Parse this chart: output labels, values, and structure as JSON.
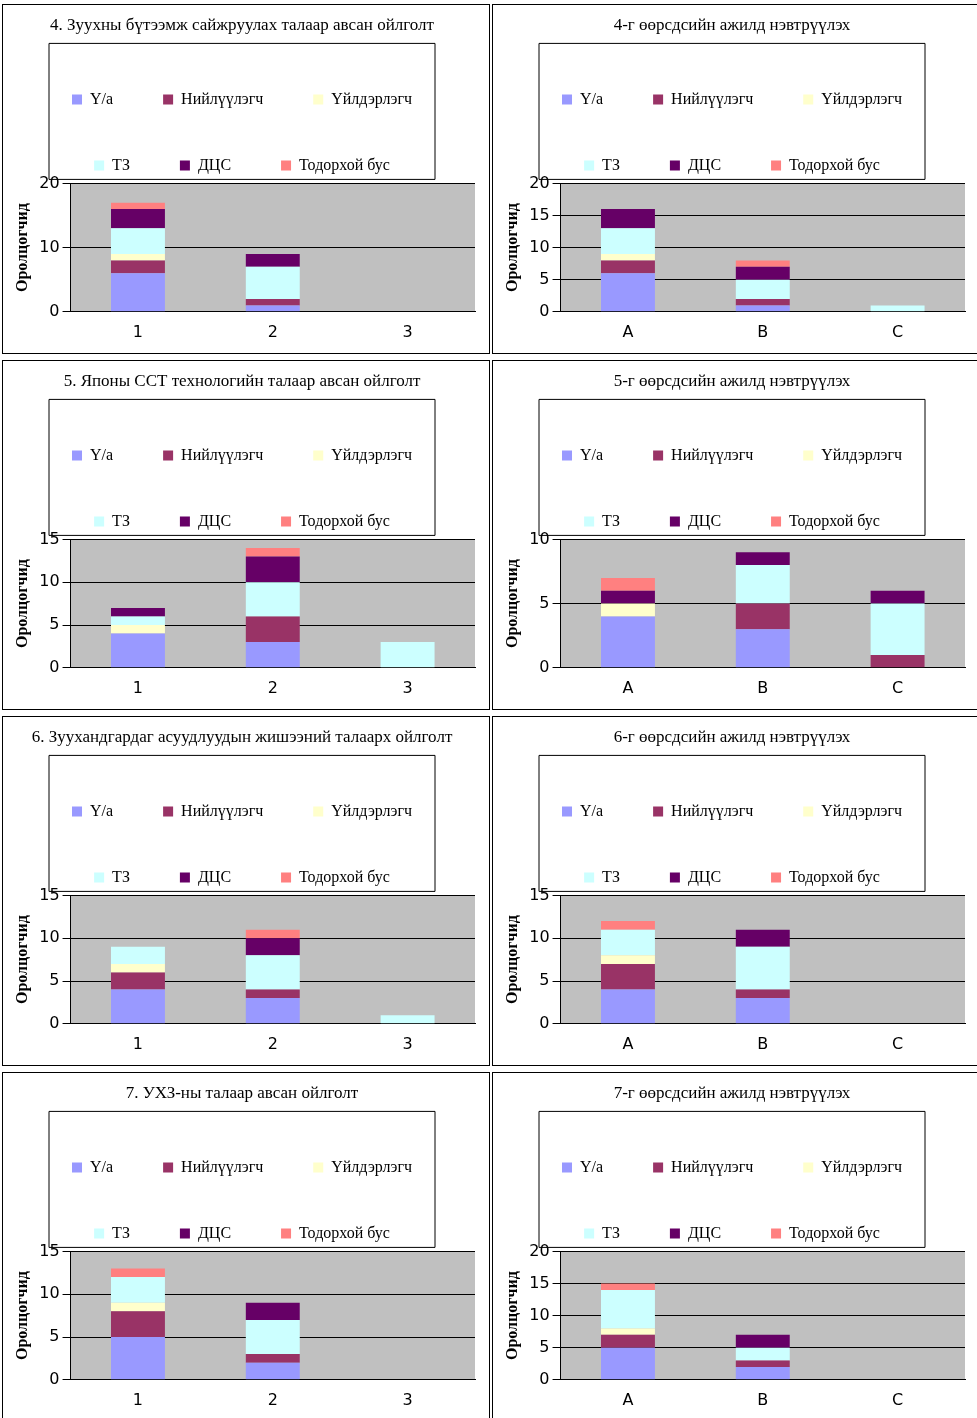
{
  "chart_data": [
    {
      "type": "bar",
      "stacked": true,
      "title": "4. Зуухны бүтээмж сайжруулах талаар авсан ойлголт",
      "ylabel": "Оролцогчид",
      "categories": [
        "1",
        "2",
        "3"
      ],
      "ylim": [
        0,
        20
      ],
      "yticks": [
        0,
        10,
        20
      ],
      "grid": "y",
      "legend": "top",
      "series": [
        {
          "name": "Y/a",
          "color": "#9999ff",
          "values": [
            6,
            1,
            0
          ]
        },
        {
          "name": "Нийлүүлэгч",
          "color": "#993366",
          "values": [
            2,
            1,
            0
          ]
        },
        {
          "name": "Үйлдэрлэгч",
          "color": "#ffffcc",
          "values": [
            1,
            0,
            0
          ]
        },
        {
          "name": "ТЗ",
          "color": "#ccffff",
          "values": [
            4,
            5,
            0
          ]
        },
        {
          "name": "ДЦС",
          "color": "#660066",
          "values": [
            3,
            2,
            0
          ]
        },
        {
          "name": "Тодорхой бус",
          "color": "#ff8080",
          "values": [
            1,
            0,
            0
          ]
        }
      ]
    },
    {
      "type": "bar",
      "stacked": true,
      "title": "4-г өөрсдсийн ажилд нэвтрүүлэх",
      "ylabel": "Оролцогчид",
      "categories": [
        "A",
        "B",
        "C"
      ],
      "ylim": [
        0,
        20
      ],
      "yticks": [
        0,
        5,
        10,
        15,
        20
      ],
      "grid": "y",
      "legend": "top",
      "series": [
        {
          "name": "Y/a",
          "color": "#9999ff",
          "values": [
            6,
            1,
            0
          ]
        },
        {
          "name": "Нийлүүлэгч",
          "color": "#993366",
          "values": [
            2,
            1,
            0
          ]
        },
        {
          "name": "Үйлдэрлэгч",
          "color": "#ffffcc",
          "values": [
            1,
            0,
            0
          ]
        },
        {
          "name": "ТЗ",
          "color": "#ccffff",
          "values": [
            4,
            3,
            1
          ]
        },
        {
          "name": "ДЦС",
          "color": "#660066",
          "values": [
            3,
            2,
            0
          ]
        },
        {
          "name": "Тодорхой бус",
          "color": "#ff8080",
          "values": [
            0,
            1,
            0
          ]
        }
      ]
    },
    {
      "type": "bar",
      "stacked": true,
      "title": "5. Японы ССТ технологийн талаар авсан ойлголт",
      "ylabel": "Оролцогчид",
      "categories": [
        "1",
        "2",
        "3"
      ],
      "ylim": [
        0,
        15
      ],
      "yticks": [
        0,
        5,
        10,
        15
      ],
      "grid": "y",
      "legend": "top",
      "series": [
        {
          "name": "Y/a",
          "color": "#9999ff",
          "values": [
            4,
            3,
            0
          ]
        },
        {
          "name": "Нийлүүлэгч",
          "color": "#993366",
          "values": [
            0,
            3,
            0
          ]
        },
        {
          "name": "Үйлдэрлэгч",
          "color": "#ffffcc",
          "values": [
            1,
            0,
            0
          ]
        },
        {
          "name": "ТЗ",
          "color": "#ccffff",
          "values": [
            1,
            4,
            3
          ]
        },
        {
          "name": "ДЦС",
          "color": "#660066",
          "values": [
            1,
            3,
            0
          ]
        },
        {
          "name": "Тодорхой бус",
          "color": "#ff8080",
          "values": [
            0,
            1,
            0
          ]
        }
      ]
    },
    {
      "type": "bar",
      "stacked": true,
      "title": "5-г өөрсдсийн ажилд нэвтрүүлэх",
      "ylabel": "Оролцогчид",
      "categories": [
        "A",
        "B",
        "C"
      ],
      "ylim": [
        0,
        10
      ],
      "yticks": [
        0,
        5,
        10
      ],
      "grid": "y",
      "legend": "top",
      "series": [
        {
          "name": "Y/a",
          "color": "#9999ff",
          "values": [
            4,
            3,
            0
          ]
        },
        {
          "name": "Нийлүүлэгч",
          "color": "#993366",
          "values": [
            0,
            2,
            1
          ]
        },
        {
          "name": "Үйлдэрлэгч",
          "color": "#ffffcc",
          "values": [
            1,
            0,
            0
          ]
        },
        {
          "name": "ТЗ",
          "color": "#ccffff",
          "values": [
            0,
            3,
            4
          ]
        },
        {
          "name": "ДЦС",
          "color": "#660066",
          "values": [
            1,
            1,
            1
          ]
        },
        {
          "name": "Тодорхой бус",
          "color": "#ff8080",
          "values": [
            1,
            0,
            0
          ]
        }
      ]
    },
    {
      "type": "bar",
      "stacked": true,
      "title": "6. Зуухандгардаг асуудлуудын жишээний талаарх ойлголт",
      "ylabel": "Оролцогчид",
      "categories": [
        "1",
        "2",
        "3"
      ],
      "ylim": [
        0,
        15
      ],
      "yticks": [
        0,
        5,
        10,
        15
      ],
      "grid": "y",
      "legend": "top",
      "series": [
        {
          "name": "Y/a",
          "color": "#9999ff",
          "values": [
            4,
            3,
            0
          ]
        },
        {
          "name": "Нийлүүлэгч",
          "color": "#993366",
          "values": [
            2,
            1,
            0
          ]
        },
        {
          "name": "Үйлдэрлэгч",
          "color": "#ffffcc",
          "values": [
            1,
            0,
            0
          ]
        },
        {
          "name": "ТЗ",
          "color": "#ccffff",
          "values": [
            2,
            4,
            1
          ]
        },
        {
          "name": "ДЦС",
          "color": "#660066",
          "values": [
            0,
            2,
            0
          ]
        },
        {
          "name": "Тодорхой бус",
          "color": "#ff8080",
          "values": [
            0,
            1,
            0
          ]
        }
      ]
    },
    {
      "type": "bar",
      "stacked": true,
      "title": "6-г өөрсдсийн ажилд нэвтрүүлэх",
      "ylabel": "Оролцогчид",
      "categories": [
        "A",
        "B",
        "C"
      ],
      "ylim": [
        0,
        15
      ],
      "yticks": [
        0,
        5,
        10,
        15
      ],
      "grid": "y",
      "legend": "top",
      "series": [
        {
          "name": "Y/a",
          "color": "#9999ff",
          "values": [
            4,
            3,
            0
          ]
        },
        {
          "name": "Нийлүүлэгч",
          "color": "#993366",
          "values": [
            3,
            1,
            0
          ]
        },
        {
          "name": "Үйлдэрлэгч",
          "color": "#ffffcc",
          "values": [
            1,
            0,
            0
          ]
        },
        {
          "name": "ТЗ",
          "color": "#ccffff",
          "values": [
            3,
            5,
            0
          ]
        },
        {
          "name": "ДЦС",
          "color": "#660066",
          "values": [
            0,
            2,
            0
          ]
        },
        {
          "name": "Тодорхой бус",
          "color": "#ff8080",
          "values": [
            1,
            0,
            0
          ]
        }
      ]
    },
    {
      "type": "bar",
      "stacked": true,
      "title": "7. УХЗ-ны талаар авсан ойлголт",
      "ylabel": "Оролцогчид",
      "categories": [
        "1",
        "2",
        "3"
      ],
      "ylim": [
        0,
        15
      ],
      "yticks": [
        0,
        5,
        10,
        15
      ],
      "grid": "y",
      "legend": "top",
      "series": [
        {
          "name": "Y/a",
          "color": "#9999ff",
          "values": [
            5,
            2,
            0
          ]
        },
        {
          "name": "Нийлүүлэгч",
          "color": "#993366",
          "values": [
            3,
            1,
            0
          ]
        },
        {
          "name": "Үйлдэрлэгч",
          "color": "#ffffcc",
          "values": [
            1,
            0,
            0
          ]
        },
        {
          "name": "ТЗ",
          "color": "#ccffff",
          "values": [
            3,
            4,
            0
          ]
        },
        {
          "name": "ДЦС",
          "color": "#660066",
          "values": [
            0,
            2,
            0
          ]
        },
        {
          "name": "Тодорхой бус",
          "color": "#ff8080",
          "values": [
            1,
            0,
            0
          ]
        }
      ]
    },
    {
      "type": "bar",
      "stacked": true,
      "title": "7-г өөрсдсийн ажилд нэвтрүүлэх",
      "ylabel": "Оролцогчид",
      "categories": [
        "A",
        "B",
        "C"
      ],
      "ylim": [
        0,
        20
      ],
      "yticks": [
        0,
        5,
        10,
        15,
        20
      ],
      "grid": "y",
      "legend": "top",
      "series": [
        {
          "name": "Y/a",
          "color": "#9999ff",
          "values": [
            5,
            2,
            0
          ]
        },
        {
          "name": "Нийлүүлэгч",
          "color": "#993366",
          "values": [
            2,
            1,
            0
          ]
        },
        {
          "name": "Үйлдэрлэгч",
          "color": "#ffffcc",
          "values": [
            1,
            0,
            0
          ]
        },
        {
          "name": "ТЗ",
          "color": "#ccffff",
          "values": [
            6,
            2,
            0
          ]
        },
        {
          "name": "ДЦС",
          "color": "#660066",
          "values": [
            0,
            2,
            0
          ]
        },
        {
          "name": "Тодорхой бус",
          "color": "#ff8080",
          "values": [
            1,
            0,
            0
          ]
        }
      ]
    }
  ]
}
